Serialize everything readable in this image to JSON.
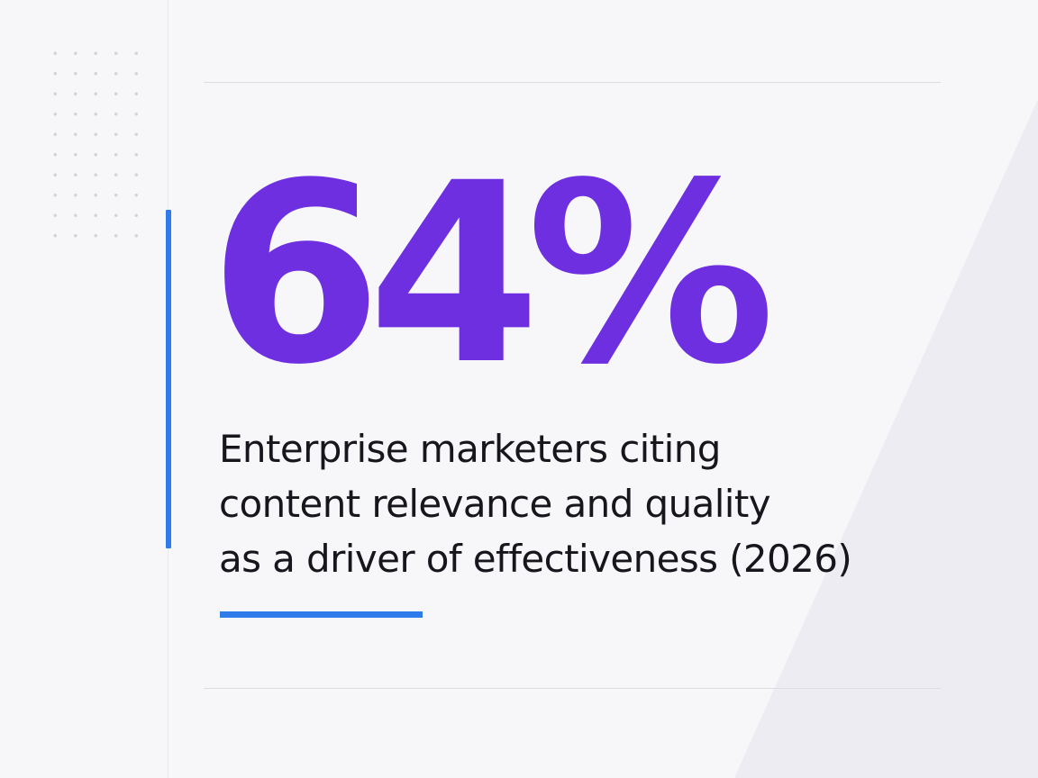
{
  "stat": {
    "value": "64%",
    "caption_lines": [
      "Enterprise marketers citing",
      "content relevance and quality",
      "as a driver of effectiveness (2026)"
    ]
  },
  "colors": {
    "background": "#f7f7fa",
    "stat": "#6d2fe0",
    "accent": "#2f7bea",
    "text": "#16161c"
  }
}
